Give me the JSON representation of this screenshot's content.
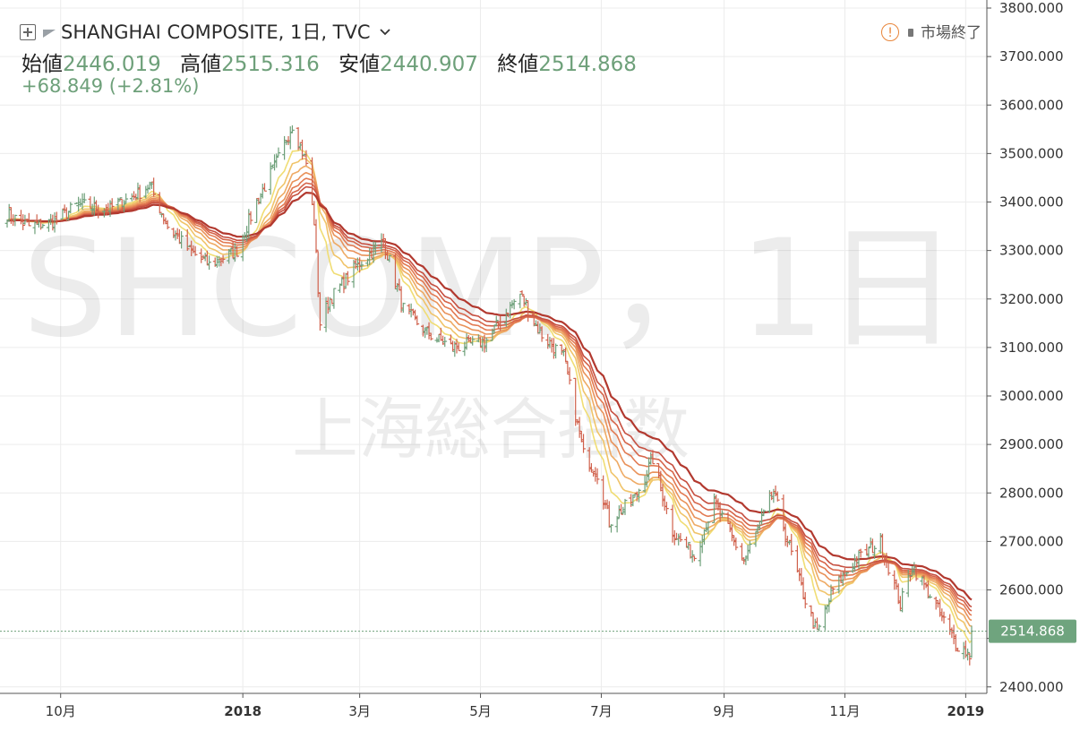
{
  "header": {
    "title": "SHANGHAI COMPOSITE, 1日, TVC",
    "chevron": "chevron-down-icon",
    "open_label": "始値",
    "open_value": "2446.019",
    "high_label": "高値",
    "high_value": "2515.316",
    "low_label": "安値",
    "low_value": "2440.907",
    "close_label": "終値",
    "close_value": "2514.868",
    "change": "+68.849 (+2.81%)",
    "market_status": "市場終了"
  },
  "watermark": {
    "symbol": "SHCOMP，1日",
    "name": "上海総合指数"
  },
  "colors": {
    "up": "#6ea07a",
    "down": "#d0614c",
    "price_tag": "#6fa47e",
    "ribbon": [
      "#f0dd74",
      "#f0c46a",
      "#eeaa64",
      "#e9925a",
      "#e27a52",
      "#d6654a",
      "#c65041",
      "#b2392f"
    ]
  },
  "chart_data": {
    "type": "candlestick",
    "title": "SHANGHAI COMPOSITE, 1日, TVC",
    "ylim": [
      2370,
      3800
    ],
    "y_ticks": [
      "3800.000",
      "3700.000",
      "3600.000",
      "3500.000",
      "3400.000",
      "3300.000",
      "3200.000",
      "3100.000",
      "3000.000",
      "2900.000",
      "2800.000",
      "2700.000",
      "2600.000",
      "2500.000",
      "2400.000"
    ],
    "x_ticks": [
      "10月",
      "2018",
      "3月",
      "5月",
      "7月",
      "9月",
      "11月",
      "2019"
    ],
    "x_tick_dates": [
      "2017-10-01",
      "2018-01-01",
      "2018-03-01",
      "2018-05-01",
      "2018-07-01",
      "2018-09-01",
      "2018-11-01",
      "2019-01-01"
    ],
    "last_price": "2514.868",
    "x_range": [
      "2017-09-04",
      "2019-01-04"
    ],
    "close_path": [
      [
        "2017-09-04",
        3375
      ],
      [
        "2017-09-15",
        3350
      ],
      [
        "2017-09-28",
        3360
      ],
      [
        "2017-10-10",
        3395
      ],
      [
        "2017-10-25",
        3385
      ],
      [
        "2017-11-10",
        3420
      ],
      [
        "2017-11-15",
        3435
      ],
      [
        "2017-11-24",
        3350
      ],
      [
        "2017-12-05",
        3300
      ],
      [
        "2017-12-15",
        3270
      ],
      [
        "2017-12-29",
        3300
      ],
      [
        "2018-01-08",
        3400
      ],
      [
        "2018-01-19",
        3490
      ],
      [
        "2018-01-26",
        3560
      ],
      [
        "2018-02-02",
        3480
      ],
      [
        "2018-02-06",
        3360
      ],
      [
        "2018-02-09",
        3150
      ],
      [
        "2018-02-14",
        3200
      ],
      [
        "2018-02-28",
        3270
      ],
      [
        "2018-03-13",
        3320
      ],
      [
        "2018-03-23",
        3180
      ],
      [
        "2018-04-04",
        3130
      ],
      [
        "2018-04-17",
        3100
      ],
      [
        "2018-05-03",
        3110
      ],
      [
        "2018-05-21",
        3210
      ],
      [
        "2018-05-31",
        3130
      ],
      [
        "2018-06-12",
        3080
      ],
      [
        "2018-06-22",
        2880
      ],
      [
        "2018-06-29",
        2840
      ],
      [
        "2018-07-05",
        2740
      ],
      [
        "2018-07-18",
        2790
      ],
      [
        "2018-07-27",
        2870
      ],
      [
        "2018-08-06",
        2720
      ],
      [
        "2018-08-17",
        2670
      ],
      [
        "2018-08-27",
        2780
      ],
      [
        "2018-09-11",
        2660
      ],
      [
        "2018-09-26",
        2800
      ],
      [
        "2018-10-11",
        2590
      ],
      [
        "2018-10-18",
        2510
      ],
      [
        "2018-10-26",
        2600
      ],
      [
        "2018-11-06",
        2660
      ],
      [
        "2018-11-19",
        2700
      ],
      [
        "2018-11-29",
        2570
      ],
      [
        "2018-12-05",
        2650
      ],
      [
        "2018-12-14",
        2590
      ],
      [
        "2018-12-27",
        2490
      ],
      [
        "2019-01-03",
        2465
      ],
      [
        "2019-01-04",
        2514.868
      ]
    ]
  }
}
